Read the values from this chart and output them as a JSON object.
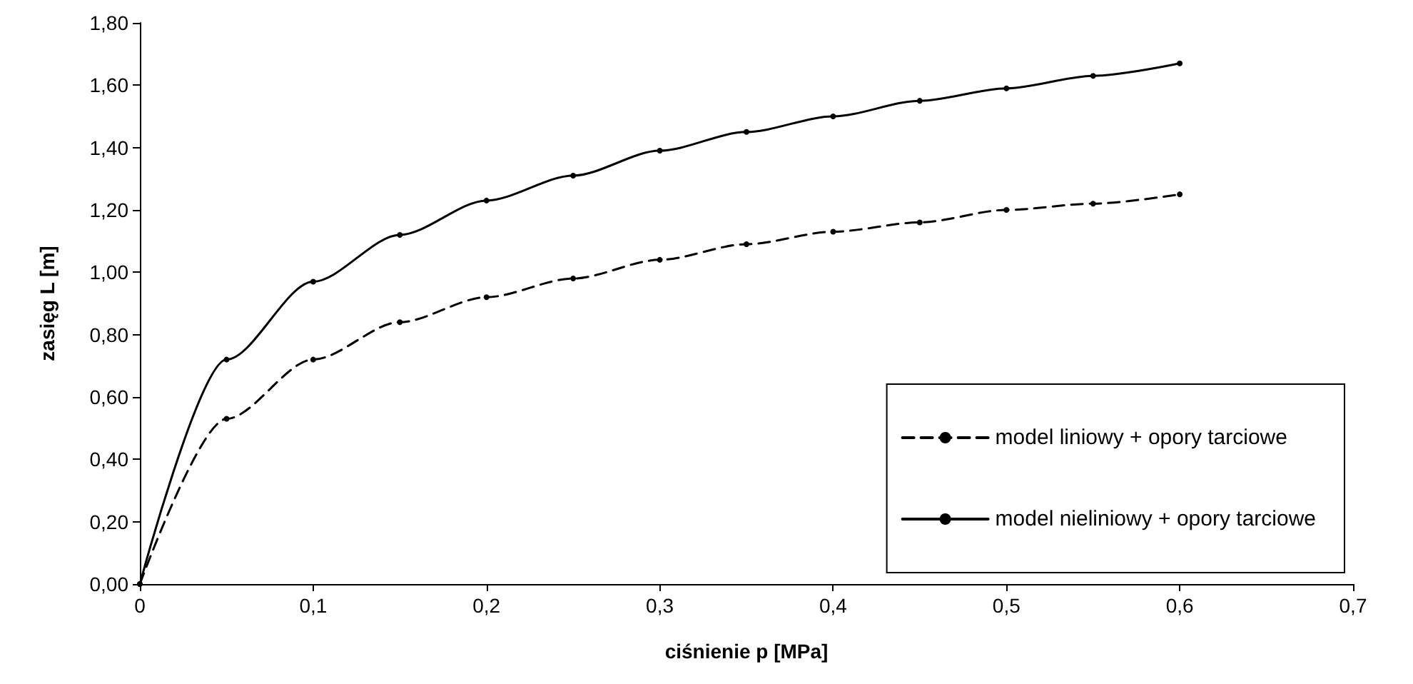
{
  "chart_data": {
    "type": "line",
    "xlabel": "ciśnienie p [MPa]",
    "ylabel": "zasięg L [m]",
    "x": [
      0,
      0.05,
      0.1,
      0.15,
      0.2,
      0.25,
      0.3,
      0.35,
      0.4,
      0.45,
      0.5,
      0.55,
      0.6
    ],
    "series": [
      {
        "name": "model liniowy + opory tarciowe",
        "color": "#000000",
        "line_style": "dashed",
        "values": [
          0,
          0.53,
          0.72,
          0.84,
          0.92,
          0.98,
          1.04,
          1.09,
          1.13,
          1.16,
          1.2,
          1.22,
          1.25
        ]
      },
      {
        "name": "model nieliniowy + opory tarciowe",
        "color": "#000000",
        "line_style": "solid",
        "values": [
          0,
          0.72,
          0.97,
          1.12,
          1.23,
          1.31,
          1.39,
          1.45,
          1.5,
          1.55,
          1.59,
          1.63,
          1.67
        ]
      }
    ],
    "xlim": [
      0,
      0.7
    ],
    "xticks": [
      0,
      {
        "value": 0.1,
        "label": "0,1"
      },
      {
        "value": 0.2,
        "label": "0,2"
      },
      {
        "value": 0.3,
        "label": "0,3"
      },
      {
        "value": 0.4,
        "label": "0,4"
      },
      {
        "value": 0.5,
        "label": "0,5"
      },
      {
        "value": 0.6,
        "label": "0,6"
      },
      {
        "value": 0.7,
        "label": "0,7"
      }
    ],
    "ylim": [
      0,
      1.8
    ],
    "yticks": [
      {
        "value": 0,
        "label": "0,00"
      },
      {
        "value": 0.2,
        "label": "0,20"
      },
      {
        "value": 0.4,
        "label": "0,40"
      },
      {
        "value": 0.6,
        "label": "0,60"
      },
      {
        "value": 0.8,
        "label": "0,80"
      },
      {
        "value": 1,
        "label": "1,00"
      },
      {
        "value": 1.2,
        "label": "1,20"
      },
      {
        "value": 1.4,
        "label": "1,40"
      },
      {
        "value": 1.6,
        "label": "1,60"
      },
      {
        "value": 1.8,
        "label": "1,80"
      }
    ],
    "grid": false,
    "legend": "bottom right",
    "marker": "circle"
  }
}
